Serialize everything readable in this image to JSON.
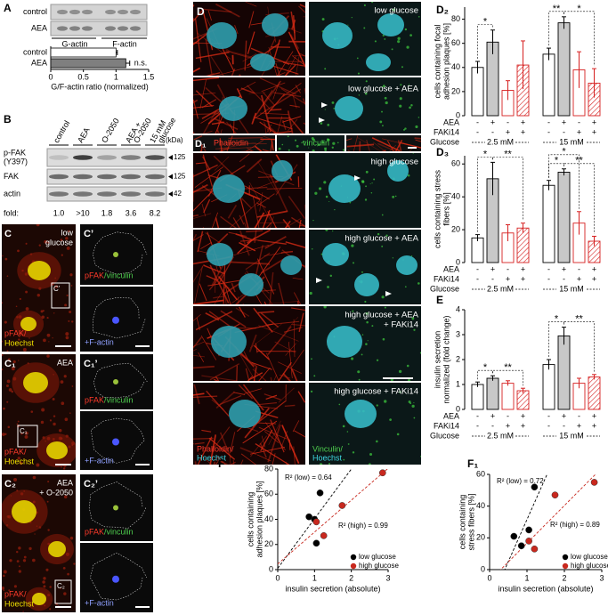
{
  "figure": {
    "A": {
      "label": "A",
      "blot_rows": [
        "control",
        "AEA"
      ],
      "blot_columns": [
        "G-actin",
        "F-actin"
      ]
    },
    "B": {
      "label": "B",
      "columns": [
        [
          "control"
        ],
        [
          "AEA"
        ],
        [
          "O-2050"
        ],
        [
          "AEA +",
          "O-2050"
        ],
        [
          "15 mM",
          "glucose"
        ]
      ],
      "unit": "(kDa)",
      "rows": [
        {
          "name": "p-FAK",
          "detail": "(Y397)",
          "kda": 125
        },
        {
          "name": "FAK",
          "kda": 125
        },
        {
          "name": "actin",
          "kda": 42
        }
      ],
      "fold_label": "fold:",
      "fold": [
        "1.0",
        ">10",
        "1.8",
        "3.6",
        "8.2"
      ]
    },
    "C": [
      {
        "label": "C",
        "prime_label": "C’",
        "inset": "C’",
        "condition": [
          "low",
          "glucose"
        ],
        "stain": [
          "pFAK/",
          "Hoechst"
        ],
        "coloc": [
          "pFAK",
          "/vinculin"
        ],
        "actin": "+F-actin"
      },
      {
        "label": "C₁",
        "prime_label": "C₁’",
        "inset": "C₁",
        "condition": [
          "AEA"
        ],
        "stain": [
          "pFAK/",
          "Hoechst"
        ],
        "coloc": [
          "pFAK",
          "/vinculin"
        ],
        "actin": "+F-actin"
      },
      {
        "label": "C₂",
        "prime_label": "C₂’",
        "inset": "C₂",
        "condition": [
          "AEA",
          "+ O-2050"
        ],
        "stain": [
          "pFAK/",
          "Hoechst"
        ],
        "coloc": [
          "pFAK",
          "/vinculin"
        ],
        "actin": "+F-actin"
      }
    ],
    "D": {
      "label": "D",
      "conditions": [
        "low glucose",
        "low glucose + AEA"
      ]
    },
    "D1": {
      "label": "D₁",
      "strip": [
        "Phalloidin",
        "vinculin"
      ],
      "conditions": [
        [
          "high glucose"
        ],
        [
          "high glucose + AEA"
        ],
        [
          "high glucose + AEA",
          "+ FAKi14"
        ],
        [
          "high glucose + FAKi14"
        ]
      ],
      "stains": [
        [
          "Phalloidin/",
          "Hoechst"
        ],
        [
          "Vinculin/",
          "Hoechst"
        ]
      ]
    }
  },
  "chart_data": [
    {
      "type": "hbar",
      "categories": [
        "control",
        "AEA"
      ],
      "values": [
        1,
        1.15
      ],
      "errors": [
        0.02,
        0.06
      ],
      "colors": [
        "#ffffff",
        "#7f7f7f"
      ],
      "annotation": "n.s.",
      "xlim": [
        0,
        1.5
      ],
      "xticks": [
        0,
        0.5,
        1,
        1.5
      ],
      "xlabel": "G/F-actin ratio (normalized)"
    },
    {
      "type": "bar",
      "label": "D₂",
      "ylabel": [
        "cells containing focal",
        "adhesion plaques [%]"
      ],
      "values": [
        40,
        61,
        21,
        42,
        51,
        77,
        38,
        27
      ],
      "errors": [
        5,
        10,
        8,
        20,
        5,
        5,
        15,
        12
      ],
      "fills": [
        "#ffffff",
        "#c8c8c8",
        "#ffffff",
        "hatch"
      ],
      "strokes": [
        "#000000",
        "#000000",
        "#d62020",
        "#d62020"
      ],
      "ylim": [
        0,
        90
      ],
      "yticks": [
        0,
        20,
        40,
        60,
        80
      ],
      "significance": [
        "*",
        "**",
        "*"
      ],
      "conditions": [
        {
          "name": "AEA",
          "marks": [
            "-",
            "+",
            "-",
            "+",
            "-",
            "+",
            "-",
            "+"
          ]
        },
        {
          "name": "FAKi14",
          "marks": [
            "-",
            "-",
            "+",
            "+",
            "-",
            "-",
            "+",
            "+"
          ]
        }
      ],
      "group_label": "Glucose",
      "groups": [
        "2.5 mM",
        "15 mM"
      ]
    },
    {
      "type": "bar",
      "label": "D₃",
      "ylabel": [
        "cells containing stress",
        "fibers [%]"
      ],
      "values": [
        15,
        51,
        18,
        21,
        47,
        55,
        24,
        13
      ],
      "errors": [
        2,
        10,
        5,
        3,
        3,
        2,
        7,
        3
      ],
      "fills": [
        "#ffffff",
        "#c8c8c8",
        "#ffffff",
        "hatch"
      ],
      "strokes": [
        "#000000",
        "#000000",
        "#d62020",
        "#d62020"
      ],
      "ylim": [
        0,
        65
      ],
      "yticks": [
        0,
        20,
        40,
        60
      ],
      "significance": [
        "*",
        "**",
        "*",
        "*",
        "**"
      ],
      "conditions": [
        {
          "name": "AEA",
          "marks": [
            "-",
            "+",
            "-",
            "+",
            "-",
            "+",
            "-",
            "+"
          ]
        },
        {
          "name": "FAKi14",
          "marks": [
            "-",
            "-",
            "+",
            "+",
            "-",
            "-",
            "+",
            "+"
          ]
        }
      ],
      "group_label": "Glucose",
      "groups": [
        "2.5 mM",
        "15 mM"
      ]
    },
    {
      "type": "bar",
      "label": "E",
      "ylabel": [
        "insulin secretion",
        "normalized (fold change)"
      ],
      "values": [
        1,
        1.25,
        1.05,
        0.75,
        1.8,
        2.95,
        1.05,
        1.3
      ],
      "errors": [
        0.1,
        0.1,
        0.1,
        0.1,
        0.2,
        0.35,
        0.2,
        0.1
      ],
      "fills": [
        "#ffffff",
        "#c8c8c8",
        "#ffffff",
        "hatch"
      ],
      "strokes": [
        "#000000",
        "#000000",
        "#d62020",
        "#d62020"
      ],
      "ylim": [
        0,
        4
      ],
      "yticks": [
        0,
        1,
        2,
        3,
        4
      ],
      "significance": [
        "*",
        "**",
        "*",
        "**"
      ],
      "conditions": [
        {
          "name": "AEA",
          "marks": [
            "-",
            "+",
            "-",
            "+",
            "-",
            "+",
            "-",
            "+"
          ]
        },
        {
          "name": "FAKi14",
          "marks": [
            "-",
            "-",
            "+",
            "+",
            "-",
            "-",
            "+",
            "+"
          ]
        }
      ],
      "group_label": "Glucose",
      "groups": [
        "2.5 mM",
        "15 mM"
      ]
    },
    {
      "type": "scatter",
      "label": "F",
      "ylabel": [
        "cells containing",
        "adhesion plaques [%]"
      ],
      "xlabel": "insulin secretion (absolute)",
      "xlim": [
        0,
        3
      ],
      "xticks": [
        0,
        1,
        2,
        3
      ],
      "ylim": [
        0,
        80
      ],
      "yticks": [
        0,
        20,
        40,
        60,
        80
      ],
      "series": [
        {
          "name": "low glucose",
          "color": "#000000",
          "x": [
            0.85,
            1.0,
            1.05,
            1.15
          ],
          "y": [
            42,
            40,
            21,
            61
          ]
        },
        {
          "name": "high glucose",
          "color": "#c8281e",
          "x": [
            1.05,
            1.25,
            1.75,
            2.85
          ],
          "y": [
            38,
            27,
            51,
            77
          ]
        }
      ],
      "annotations": [
        "R² (low) = 0.64",
        "R² (high) = 0.99"
      ]
    },
    {
      "type": "scatter",
      "label": "F₁",
      "ylabel": [
        "cells containing",
        "stress fibers [%]"
      ],
      "xlabel": "insulin secretion (absolute)",
      "xlim": [
        0,
        3
      ],
      "xticks": [
        0,
        1,
        2,
        3
      ],
      "ylim": [
        0,
        60
      ],
      "yticks": [
        0,
        20,
        40,
        60
      ],
      "series": [
        {
          "name": "low glucose",
          "color": "#000000",
          "x": [
            0.65,
            0.85,
            1.05,
            1.2
          ],
          "y": [
            21,
            15,
            25,
            52
          ]
        },
        {
          "name": "high glucose",
          "color": "#c8281e",
          "x": [
            1.05,
            1.2,
            1.75,
            2.8
          ],
          "y": [
            18,
            13,
            47,
            55
          ]
        }
      ],
      "annotations": [
        "R² (low) = 0.72",
        "R² (high) = 0.89"
      ]
    }
  ]
}
